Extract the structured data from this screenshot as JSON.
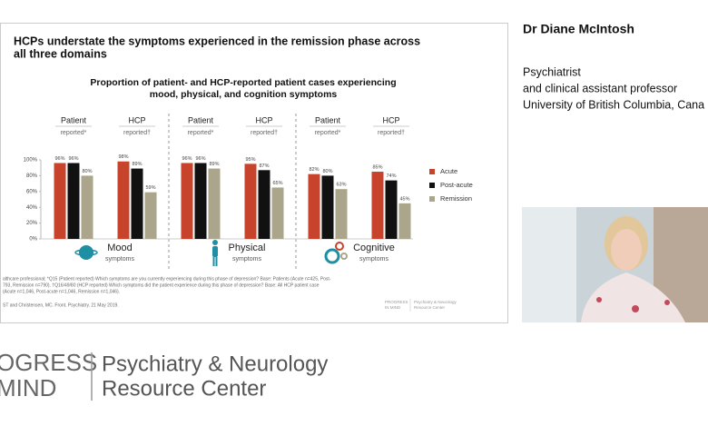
{
  "slide": {
    "title_lines": [
      "HCPs understate the symptoms experienced in the remission phase across",
      "all three domains"
    ],
    "footnotes": [
      "althcare professional; *Q15 (Patient reported) Which symptoms are you currently experiencing during this phase of depression? Base: Patients (Acute n=425, Post-",
      "793, Remission n=790). †Q16/49/80 (HCP reported) Which symptoms did the patient experience during this phase of depression? Base: All HCP patient case",
      "(Acute n=1,046, Post-acute n=1,046, Remission n=1,046).",
      "ST and Christensen, MC. Front. Psychiatry. 21 May 2019."
    ],
    "logo": [
      "PROGRESS",
      "IN MIND",
      "Psychiatry & Neurology",
      "Resource Center"
    ]
  },
  "chart_data": {
    "type": "grouped_bar",
    "title_lines": [
      "Proportion of patient- and HCP-reported patient cases experiencing",
      "mood, physical, and cognition symptoms"
    ],
    "categories": [
      "Patient",
      "HCP",
      "Patient",
      "HCP",
      "Patient",
      "HCP"
    ],
    "category_sublabels": [
      "reported*",
      "reported†",
      "reported*",
      "reported†",
      "reported*",
      "reported†"
    ],
    "groups": [
      {
        "label": "Mood",
        "sublabel": "symptoms"
      },
      {
        "label": "Physical",
        "sublabel": "symptoms"
      },
      {
        "label": "Cognitive",
        "sublabel": "symptoms"
      }
    ],
    "series": [
      {
        "name": "Acute",
        "color": "#c8432b",
        "values": [
          96,
          98,
          96,
          95,
          82,
          85
        ],
        "value_labels": [
          "96%",
          "98%",
          "96%",
          "95%",
          "82%",
          "85%"
        ]
      },
      {
        "name": "Post-acute",
        "color": "#111111",
        "values": [
          96,
          89,
          96,
          87,
          80,
          74
        ],
        "value_labels": [
          "96%",
          "89%",
          "96%",
          "87%",
          "80%",
          "74%"
        ]
      },
      {
        "name": "Remission",
        "color": "#aaa58b",
        "values": [
          80,
          59,
          89,
          65,
          63,
          45
        ],
        "value_labels": [
          "80%",
          "59%",
          "89%",
          "65%",
          "63%",
          "45%"
        ]
      }
    ],
    "ylim": [
      0,
      100
    ],
    "yticks": [
      {
        "value": 0,
        "label": "0%"
      },
      {
        "value": 20,
        "label": "20%"
      },
      {
        "value": 40,
        "label": "40%"
      },
      {
        "value": 60,
        "label": "60%"
      },
      {
        "value": 80,
        "label": "80%"
      },
      {
        "value": 100,
        "label": "100%"
      }
    ],
    "grid": false,
    "legend": "right"
  },
  "speaker": {
    "name": "Dr Diane McIntosh",
    "lines": [
      "Psychiatrist",
      "and clinical assistant professor",
      "University of British Columbia, Cana"
    ]
  },
  "brand": {
    "left": [
      "OGRESS",
      "MIND"
    ],
    "right": [
      "Psychiatry & Neurology",
      "Resource Center"
    ]
  }
}
